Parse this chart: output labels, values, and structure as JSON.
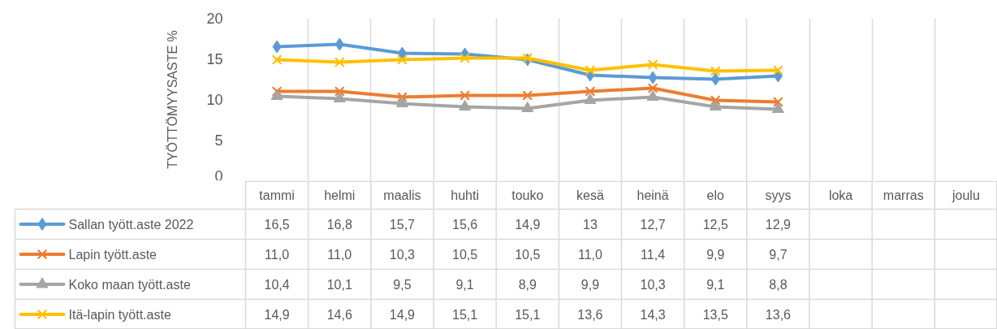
{
  "chart_data": {
    "type": "line",
    "ylabel": "TYÖTTÖMYYSASTE %",
    "categories": [
      "tammi",
      "helmi",
      "maalis",
      "huhti",
      "touko",
      "kesä",
      "heinä",
      "elo",
      "syys",
      "loka",
      "marras",
      "joulu"
    ],
    "ylim": [
      0,
      20
    ],
    "yticks": [
      0,
      5,
      10,
      15,
      20
    ],
    "grid": "x",
    "legend": "bottom",
    "line_style": "solid",
    "series": [
      {
        "name": "Sallan tyött.aste 2022",
        "color": "#5b9bd5",
        "marker": "diamond",
        "values": [
          16.5,
          16.8,
          15.7,
          15.6,
          14.9,
          13,
          12.7,
          12.5,
          12.9,
          null,
          null,
          null
        ],
        "value_labels": [
          "16,5",
          "16,8",
          "15,7",
          "15,6",
          "14,9",
          "13",
          "12,7",
          "12,5",
          "12,9",
          null,
          null,
          null
        ]
      },
      {
        "name": "Lapin tyött.aste",
        "color": "#ed7d31",
        "marker": "cross",
        "values": [
          11.0,
          11.0,
          10.3,
          10.5,
          10.5,
          11.0,
          11.4,
          9.9,
          9.7,
          null,
          null,
          null
        ],
        "value_labels": [
          "11,0",
          "11,0",
          "10,3",
          "10,5",
          "10,5",
          "11,0",
          "11,4",
          "9,9",
          "9,7",
          null,
          null,
          null
        ]
      },
      {
        "name": "Koko maan tyött.aste",
        "color": "#a5a5a5",
        "marker": "triangle",
        "values": [
          10.4,
          10.1,
          9.5,
          9.1,
          8.9,
          9.9,
          10.3,
          9.1,
          8.8,
          null,
          null,
          null
        ],
        "value_labels": [
          "10,4",
          "10,1",
          "9,5",
          "9,1",
          "8,9",
          "9,9",
          "10,3",
          "9,1",
          "8,8",
          null,
          null,
          null
        ]
      },
      {
        "name": "Itä-lapin tyött.aste",
        "color": "#ffc000",
        "marker": "cross",
        "values": [
          14.9,
          14.6,
          14.9,
          15.1,
          15.1,
          13.6,
          14.3,
          13.5,
          13.6,
          null,
          null,
          null
        ],
        "value_labels": [
          "14,9",
          "14,6",
          "14,9",
          "15,1",
          "15,1",
          "13,6",
          "14,3",
          "13,5",
          "13,6",
          null,
          null,
          null
        ]
      }
    ]
  }
}
